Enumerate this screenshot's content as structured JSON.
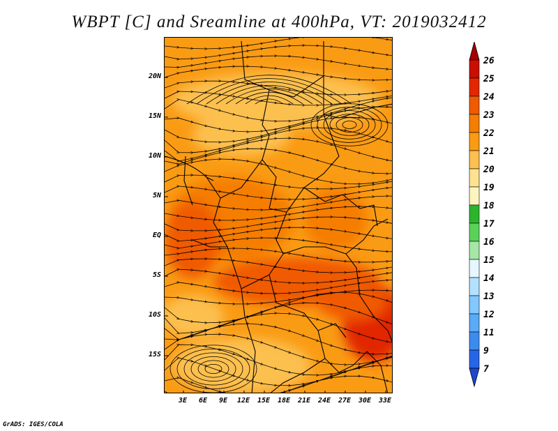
{
  "title": "WBPT [C] and Sreamline at 400hPa, VT: 2019032412",
  "footer": "GrADS: IGES/COLA",
  "map": {
    "variable": "WBPT [C]",
    "overlay": "Sreamline",
    "level": "400hPa",
    "valid_time": "2019032412",
    "lat_labels": [
      "20N",
      "15N",
      "10N",
      "5N",
      "EQ",
      "5S",
      "10S",
      "15S"
    ],
    "lon_labels": [
      "3E",
      "6E",
      "9E",
      "12E",
      "15E",
      "18E",
      "21E",
      "24E",
      "27E",
      "30E",
      "33E"
    ]
  },
  "colorbar": {
    "labels": [
      "26",
      "25",
      "24",
      "23",
      "22",
      "21",
      "20",
      "19",
      "18",
      "17",
      "16",
      "15",
      "14",
      "13",
      "12",
      "11",
      "9",
      "7"
    ],
    "colors": [
      "#a50000",
      "#c80f00",
      "#e12800",
      "#f05a00",
      "#f57d00",
      "#fa9b14",
      "#fcc050",
      "#fde391",
      "#fdf5c0",
      "#2db42d",
      "#5ad25a",
      "#a6e6a6",
      "#e6f7ff",
      "#b4e1ff",
      "#82c8ff",
      "#5aaaf5",
      "#3c8cf0",
      "#2864e6",
      "#1e46d2"
    ]
  },
  "colors": {
    "base": "#fa9b14",
    "light": "#fcc050",
    "dark": "#f57d00",
    "darker": "#f05a00",
    "darkest": "#e12800"
  }
}
